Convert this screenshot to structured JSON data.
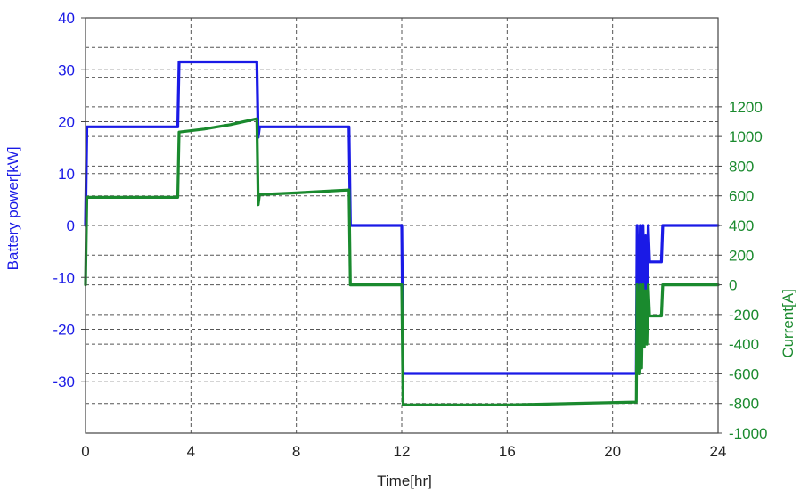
{
  "chart_data": {
    "type": "line",
    "title": "",
    "xlabel": "Time[hr]",
    "ylabel_left": "Battery power[kW]",
    "ylabel_right": "Current[A]",
    "xlim": [
      0,
      24
    ],
    "ylim_left": [
      -40,
      40
    ],
    "ylim_right": [
      -1000,
      1800
    ],
    "grid": true,
    "x_ticks": [
      "0",
      "4",
      "8",
      "12",
      "16",
      "20",
      "24"
    ],
    "left_ticks": [
      "40",
      "30",
      "20",
      "10",
      "0",
      "-10",
      "-20",
      "-30"
    ],
    "right_ticks": [
      "1200",
      "1000",
      "800",
      "600",
      "400",
      "200",
      "0",
      "-200",
      "-400",
      "-600",
      "-800",
      "-1000"
    ],
    "colors": {
      "power": "#1a1ae6",
      "current": "#1a8a2e",
      "grid": "#555555"
    },
    "series": [
      {
        "axis": "left",
        "x": [
          0,
          0.05,
          3.5,
          3.55,
          6.5,
          6.55,
          6.6,
          6.8,
          10.0,
          10.05,
          12.0,
          12.05,
          20.9,
          20.93,
          21.0,
          21.05,
          21.1,
          21.15,
          21.2,
          21.25,
          21.3,
          21.35,
          21.4,
          21.45,
          21.5,
          21.55,
          21.85,
          21.9,
          24.0
        ],
        "y": [
          0,
          19,
          19,
          31.5,
          31.5,
          17,
          19,
          19,
          19,
          0,
          0,
          -28.5,
          -28.5,
          0,
          -22,
          0,
          -20,
          0,
          -13,
          -2,
          -15,
          0,
          -7,
          -7,
          -7,
          -7,
          -7,
          0,
          0
        ]
      },
      {
        "axis": "right",
        "x": [
          0,
          0.05,
          3.5,
          3.55,
          4.5,
          5.5,
          6.5,
          6.55,
          6.6,
          6.8,
          8.0,
          10.0,
          10.05,
          12.0,
          12.05,
          16.0,
          20.9,
          20.93,
          21.0,
          21.05,
          21.1,
          21.15,
          21.2,
          21.25,
          21.3,
          21.35,
          21.4,
          21.45,
          21.85,
          21.9,
          24.0
        ],
        "y": [
          0,
          590,
          590,
          1030,
          1050,
          1080,
          1120,
          540,
          610,
          610,
          620,
          640,
          0,
          0,
          -810,
          -810,
          -790,
          0,
          -600,
          0,
          -560,
          0,
          -420,
          -40,
          -400,
          0,
          -210,
          -210,
          -210,
          0,
          0
        ]
      }
    ]
  }
}
